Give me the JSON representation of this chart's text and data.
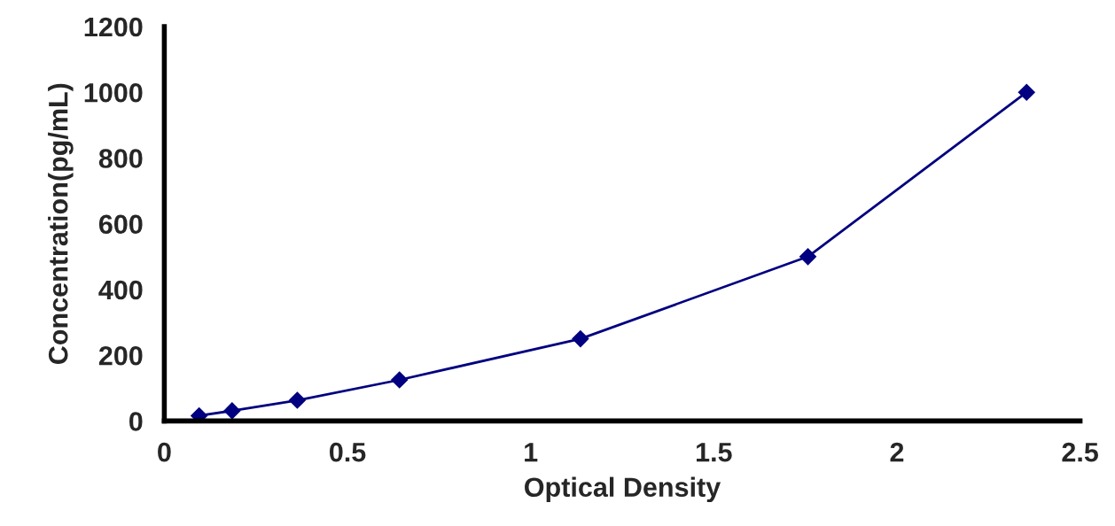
{
  "chart_data": {
    "type": "line",
    "xlabel": "Optical Density",
    "ylabel": "Concentration(pg/mL)",
    "x": [
      0.095,
      0.185,
      0.363,
      0.642,
      1.136,
      1.757,
      2.354
    ],
    "series": [
      {
        "color": "#000080",
        "values": [
          16,
          31,
          63,
          125,
          250,
          500,
          1000
        ]
      }
    ],
    "marker": "diamond",
    "grid": false,
    "legend": false,
    "xlim": [
      0,
      2.5
    ],
    "xticks": [
      0,
      0.5,
      1,
      1.5,
      2,
      2.5
    ],
    "ylim": [
      0,
      1200
    ],
    "yticks": [
      0,
      200,
      400,
      600,
      800,
      1000,
      1200
    ]
  }
}
